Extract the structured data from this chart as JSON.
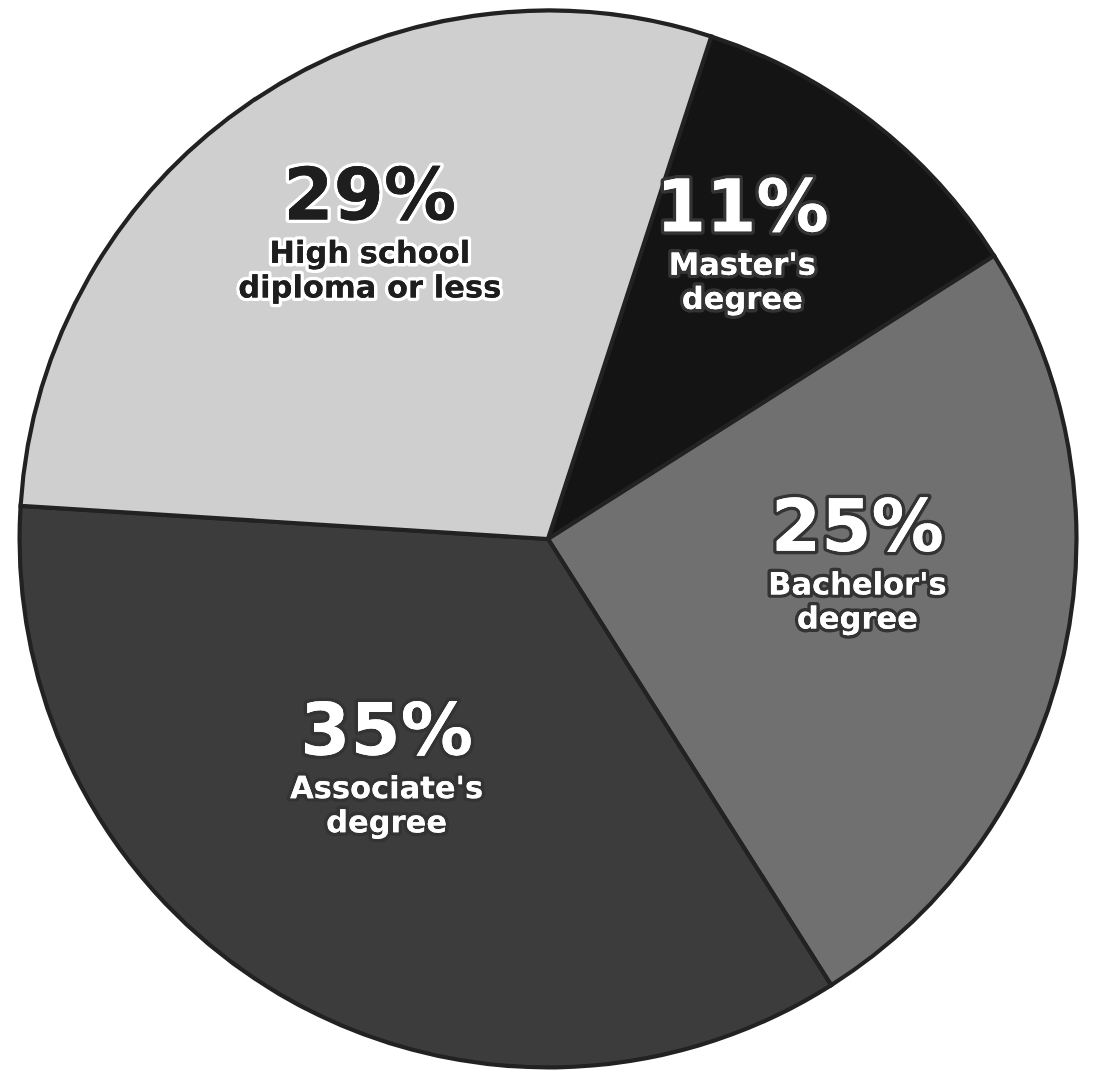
{
  "chart_data": {
    "type": "pie",
    "categories": [
      "Master's\ndegree",
      "Bachelor's\ndegree",
      "Associate's\ndegree",
      "High school\ndiploma or less"
    ],
    "values": [
      11,
      25,
      35,
      29
    ],
    "value_labels": [
      "11%",
      "25%",
      "35%",
      "29%"
    ],
    "colors": [
      "#141414",
      "#707070",
      "#3c3c3c",
      "#cfcfcf"
    ]
  }
}
